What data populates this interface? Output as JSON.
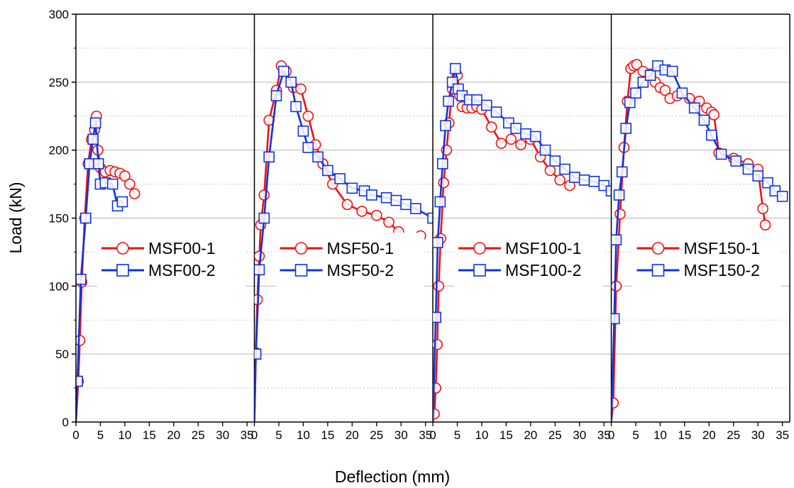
{
  "chart_data": {
    "type": "line",
    "xlabel": "Deflection (mm)",
    "ylabel": "Load (kN)",
    "grid": "horizontal dotted",
    "shared_y_axis": true,
    "ylim": [
      0,
      300
    ],
    "y_ticks": [
      "0",
      "50",
      "100",
      "150",
      "200",
      "250",
      "300"
    ],
    "panels": [
      {
        "xlim": [
          0,
          36.5
        ],
        "x_ticks": [
          "0",
          "5",
          "10",
          "15",
          "20",
          "25",
          "30",
          "35"
        ],
        "legend_position": "center-left",
        "series": [
          {
            "name": "MSF00-1",
            "color": "#ee1111",
            "marker": "circle",
            "x": [
              0,
              0.5,
              0.8,
              1.2,
              1.8,
              2.5,
              3.2,
              3.8,
              4.2,
              4.5,
              5.0,
              6.0,
              7.0,
              8.0,
              9.0,
              10.0,
              11.0,
              12.0
            ],
            "y": [
              0,
              30,
              60,
              103,
              150,
              190,
              208,
              215,
              225,
              200,
              187,
              184,
              185,
              184,
              183,
              181,
              175,
              168
            ]
          },
          {
            "name": "MSF00-2",
            "color": "#1133dd",
            "marker": "square",
            "x": [
              0,
              0.3,
              1.0,
              2.0,
              2.8,
              3.5,
              4.0,
              4.6,
              5.0,
              6.0,
              7.5,
              8.5,
              9.5
            ],
            "y": [
              0,
              30,
              105,
              150,
              190,
              208,
              220,
              190,
              175,
              176,
              175,
              159,
              162
            ]
          }
        ]
      },
      {
        "xlim": [
          0,
          36.5
        ],
        "x_ticks": [
          "0",
          "5",
          "10",
          "15",
          "20",
          "25",
          "30",
          "35"
        ],
        "legend_position": "center-left",
        "series": [
          {
            "name": "MSF50-1",
            "color": "#ee1111",
            "marker": "circle",
            "x": [
              0,
              0.3,
              0.6,
              1.0,
              1.3,
              2.0,
              3.0,
              4.5,
              5.5,
              6.5,
              8.0,
              9.5,
              11.0,
              12.5,
              14.0,
              16.0,
              19.0,
              22.0,
              25.0,
              27.5,
              29.5,
              31.5,
              34.0
            ],
            "y": [
              0,
              51,
              90,
              122,
              145,
              167,
              222,
              244,
              262,
              258,
              246,
              245,
              225,
              204,
              190,
              175,
              160,
              155,
              152,
              147,
              140,
              134,
              137
            ]
          },
          {
            "name": "MSF50-2",
            "color": "#1133dd",
            "marker": "square",
            "x": [
              0,
              0.3,
              1.0,
              2.0,
              3.0,
              4.5,
              6.0,
              7.5,
              8.5,
              10.0,
              11.0,
              13.0,
              15.0,
              17.5,
              20.0,
              22.5,
              24.0,
              27.0,
              29.0,
              31.0,
              33.0,
              36.5
            ],
            "y": [
              0,
              50,
              112,
              150,
              195,
              240,
              258,
              250,
              232,
              214,
              202,
              195,
              185,
              179,
              172,
              170,
              167,
              165,
              163,
              160,
              157,
              150
            ]
          }
        ]
      },
      {
        "xlim": [
          0,
          36.5
        ],
        "x_ticks": [
          "0",
          "5",
          "10",
          "15",
          "20",
          "25",
          "30",
          "35"
        ],
        "legend_position": "center-left",
        "series": [
          {
            "name": "MSF100-1",
            "color": "#ee1111",
            "marker": "circle",
            "x": [
              0,
              0.3,
              0.6,
              0.9,
              1.2,
              1.6,
              2.2,
              2.8,
              3.3,
              4.0,
              5.0,
              5.5,
              6.0,
              7.0,
              8.0,
              9.0,
              10.0,
              12.0,
              14.0,
              16.0,
              18.0,
              20.0,
              22.0,
              24.0,
              26.0,
              28.0
            ],
            "y": [
              0,
              6,
              25,
              57,
              100,
              135,
              176,
              200,
              220,
              245,
              255,
              240,
              232,
              231,
              231,
              232,
              230,
              217,
              205,
              208,
              204,
              208,
              195,
              185,
              178,
              174
            ]
          },
          {
            "name": "MSF100-2",
            "color": "#1133dd",
            "marker": "square",
            "x": [
              0,
              0.6,
              1.0,
              1.5,
              2.0,
              2.6,
              3.2,
              4.0,
              4.6,
              5.2,
              6.0,
              7.5,
              9.0,
              11.0,
              13.0,
              15.5,
              17.0,
              19.0,
              21.0,
              23.0,
              25.0,
              27.0,
              29.0,
              31.0,
              33.0,
              35.0,
              36.5
            ],
            "y": [
              0,
              77,
              132,
              162,
              190,
              218,
              236,
              250,
              260,
              245,
              240,
              237,
              237,
              233,
              228,
              220,
              216,
              212,
              210,
              200,
              192,
              186,
              180,
              178,
              177,
              174,
              170
            ]
          }
        ]
      },
      {
        "xlim": [
          0,
          36.5
        ],
        "x_ticks": [
          "0",
          "5",
          "10",
          "15",
          "20",
          "25",
          "30",
          "35"
        ],
        "legend_position": "center-left",
        "series": [
          {
            "name": "MSF150-1",
            "color": "#ee1111",
            "marker": "circle",
            "x": [
              0,
              0.4,
              1.0,
              1.8,
              2.6,
              3.3,
              4.0,
              4.6,
              5.2,
              6.5,
              8.0,
              9.0,
              10.0,
              11.0,
              12.0,
              13.5,
              16.0,
              18.0,
              19.5,
              20.5,
              21.0,
              22.0,
              25.0,
              28.0,
              30.0,
              31.0,
              31.5
            ],
            "y": [
              0,
              14,
              100,
              153,
              202,
              236,
              260,
              262,
              263,
              258,
              256,
              250,
              246,
              244,
              238,
              240,
              238,
              236,
              231,
              228,
              226,
              198,
              194,
              190,
              186,
              157,
              145
            ]
          },
          {
            "name": "MSF150-2",
            "color": "#1133dd",
            "marker": "square",
            "x": [
              0,
              0.6,
              1.0,
              1.6,
              2.2,
              3.0,
              3.8,
              5.0,
              6.5,
              8.0,
              9.5,
              11.0,
              12.5,
              14.5,
              17.0,
              19.0,
              20.5,
              22.5,
              25.5,
              28.0,
              30.0,
              32.0,
              33.5,
              35.0
            ],
            "y": [
              0,
              76,
              134,
              167,
              184,
              216,
              235,
              242,
              250,
              255,
              262,
              259,
              258,
              242,
              231,
              222,
              211,
              197,
              192,
              186,
              181,
              176,
              170,
              166
            ]
          }
        ]
      }
    ]
  }
}
